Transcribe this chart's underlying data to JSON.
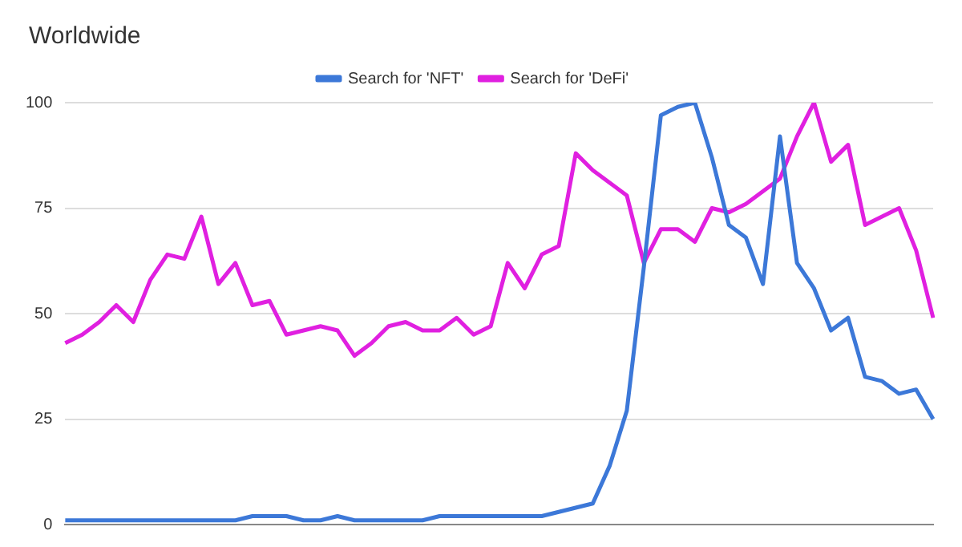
{
  "chart_data": {
    "type": "line",
    "title": "Worldwide",
    "categories": [
      null,
      null,
      null,
      null,
      null,
      null,
      null,
      null,
      null,
      null,
      null,
      null,
      null,
      null,
      null,
      null,
      null,
      null,
      null,
      null,
      null,
      null,
      null,
      null,
      null,
      null,
      null,
      null,
      null,
      null,
      null,
      null,
      null,
      null,
      null,
      null,
      null,
      null,
      null,
      null,
      null,
      null,
      null,
      null,
      null,
      null,
      null,
      null,
      null,
      null,
      null,
      null
    ],
    "ylim": [
      0,
      100
    ],
    "yticks": [
      0,
      25,
      50,
      75,
      100
    ],
    "series": [
      {
        "name": "Search for 'NFT'",
        "color": "#3c78d8",
        "values": [
          1,
          1,
          1,
          1,
          1,
          1,
          1,
          1,
          1,
          1,
          1,
          2,
          2,
          2,
          1,
          1,
          2,
          1,
          1,
          1,
          1,
          1,
          2,
          2,
          2,
          2,
          2,
          2,
          2,
          3,
          4,
          5,
          14,
          27,
          61,
          97,
          99,
          100,
          87,
          71,
          68,
          57,
          92,
          62,
          56,
          46,
          49,
          35,
          34,
          31,
          32,
          25
        ]
      },
      {
        "name": "Search for 'DeFi'",
        "color": "#e020e0",
        "values": [
          43,
          45,
          48,
          52,
          48,
          58,
          64,
          63,
          73,
          57,
          62,
          52,
          53,
          45,
          46,
          47,
          46,
          40,
          43,
          47,
          48,
          46,
          46,
          49,
          45,
          47,
          62,
          56,
          64,
          66,
          88,
          84,
          81,
          78,
          62,
          70,
          70,
          67,
          75,
          74,
          76,
          79,
          82,
          92,
          100,
          86,
          90,
          71,
          73,
          75,
          65,
          49
        ]
      }
    ],
    "grid": "y",
    "legend": "top",
    "tick_labels": "y",
    "marker": "none",
    "line_style": "solid"
  }
}
